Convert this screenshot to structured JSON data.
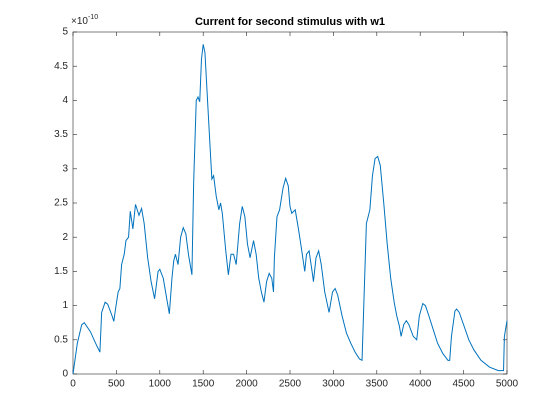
{
  "chart_data": {
    "type": "line",
    "title": "Current for second stimulus with w1",
    "y_exponent_base": "×10",
    "y_exponent_power": "-10",
    "x": [
      0,
      50,
      100,
      130,
      200,
      260,
      310,
      330,
      370,
      400,
      450,
      470,
      490,
      520,
      540,
      560,
      590,
      610,
      640,
      660,
      690,
      720,
      760,
      790,
      820,
      860,
      900,
      940,
      980,
      1000,
      1040,
      1080,
      1110,
      1140,
      1160,
      1180,
      1210,
      1240,
      1270,
      1300,
      1330,
      1370,
      1390,
      1420,
      1440,
      1460,
      1480,
      1500,
      1520,
      1550,
      1580,
      1600,
      1620,
      1650,
      1680,
      1700,
      1720,
      1760,
      1790,
      1820,
      1850,
      1880,
      1920,
      1950,
      1980,
      2010,
      2040,
      2080,
      2110,
      2140,
      2170,
      2200,
      2230,
      2260,
      2290,
      2310,
      2320,
      2350,
      2380,
      2420,
      2450,
      2480,
      2500,
      2520,
      2560,
      2600,
      2630,
      2670,
      2690,
      2720,
      2760,
      2770,
      2800,
      2830,
      2860,
      2900,
      2950,
      2990,
      3020,
      3050,
      3100,
      3150,
      3200,
      3250,
      3300,
      3330,
      3350,
      3380,
      3420,
      3450,
      3480,
      3510,
      3540,
      3580,
      3620,
      3660,
      3700,
      3730,
      3760,
      3780,
      3810,
      3840,
      3870,
      3920,
      3960,
      3990,
      4030,
      4060,
      4100,
      4150,
      4200,
      4260,
      4320,
      4340,
      4360,
      4400,
      4420,
      4450,
      4500,
      4560,
      4620,
      4700,
      4800,
      4900,
      4960,
      4970,
      5000
    ],
    "series": [
      {
        "name": "w1",
        "color": "#0072bd",
        "values": [
          0,
          0.45,
          0.72,
          0.75,
          0.62,
          0.45,
          0.32,
          0.9,
          1.05,
          1.02,
          0.85,
          0.77,
          0.95,
          1.2,
          1.25,
          1.6,
          1.75,
          1.95,
          2.0,
          2.38,
          2.12,
          2.48,
          2.32,
          2.42,
          2.2,
          1.7,
          1.35,
          1.1,
          1.5,
          1.53,
          1.4,
          1.1,
          0.88,
          1.4,
          1.65,
          1.75,
          1.6,
          2.0,
          2.14,
          2.05,
          1.75,
          1.45,
          2.8,
          4.0,
          4.05,
          3.98,
          4.6,
          4.82,
          4.7,
          4.0,
          3.3,
          2.85,
          2.9,
          2.6,
          2.4,
          2.5,
          2.35,
          1.8,
          1.45,
          1.75,
          1.75,
          1.6,
          2.2,
          2.45,
          2.3,
          1.9,
          1.7,
          1.95,
          1.75,
          1.4,
          1.2,
          1.05,
          1.35,
          1.47,
          1.4,
          1.2,
          1.7,
          2.3,
          2.4,
          2.72,
          2.86,
          2.75,
          2.45,
          2.35,
          2.4,
          2.1,
          1.85,
          1.5,
          1.75,
          1.8,
          1.45,
          1.35,
          1.7,
          1.8,
          1.6,
          1.2,
          0.9,
          1.2,
          1.25,
          1.15,
          0.85,
          0.6,
          0.45,
          0.32,
          0.22,
          0.2,
          1.0,
          2.2,
          2.4,
          2.9,
          3.15,
          3.18,
          3.05,
          2.5,
          1.9,
          1.4,
          1.05,
          0.85,
          0.7,
          0.55,
          0.72,
          0.78,
          0.72,
          0.55,
          0.5,
          0.85,
          1.03,
          1.0,
          0.85,
          0.65,
          0.45,
          0.3,
          0.2,
          0.2,
          0.55,
          0.92,
          0.95,
          0.9,
          0.72,
          0.5,
          0.35,
          0.2,
          0.1,
          0.05,
          0.05,
          0.55,
          0.78
        ]
      }
    ],
    "xlim": [
      0,
      5000
    ],
    "xticks": [
      0,
      500,
      1000,
      1500,
      2000,
      2500,
      3000,
      3500,
      4000,
      4500,
      5000
    ],
    "ylim": [
      0,
      5
    ],
    "yticks": [
      0,
      0.5,
      1,
      1.5,
      2,
      2.5,
      3,
      3.5,
      4,
      4.5,
      5
    ]
  }
}
